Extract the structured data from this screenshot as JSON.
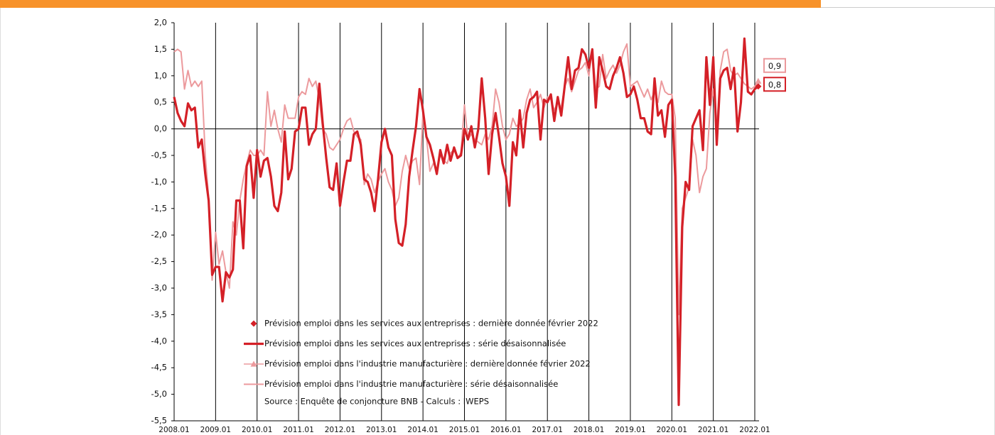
{
  "chart_data": {
    "type": "line",
    "categories": [
      "2008.01",
      null,
      null,
      null,
      null,
      null,
      null,
      null,
      null,
      null,
      null,
      null,
      "2009.01",
      null,
      null,
      null,
      null,
      null,
      null,
      null,
      null,
      null,
      null,
      null,
      "2010.01",
      null,
      null,
      null,
      null,
      null,
      null,
      null,
      null,
      null,
      null,
      null,
      "2011.01",
      null,
      null,
      null,
      null,
      null,
      null,
      null,
      null,
      null,
      null,
      null,
      "2012.01",
      null,
      null,
      null,
      null,
      null,
      null,
      null,
      null,
      null,
      null,
      null,
      "2013.01",
      null,
      null,
      null,
      null,
      null,
      null,
      null,
      null,
      null,
      null,
      null,
      "2014.01",
      null,
      null,
      null,
      null,
      null,
      null,
      null,
      null,
      null,
      null,
      null,
      "2015.01",
      null,
      null,
      null,
      null,
      null,
      null,
      null,
      null,
      null,
      null,
      null,
      "2016.01",
      null,
      null,
      null,
      null,
      null,
      null,
      null,
      null,
      null,
      null,
      null,
      "2017.01",
      null,
      null,
      null,
      null,
      null,
      null,
      null,
      null,
      null,
      null,
      null,
      "2018.01",
      null,
      null,
      null,
      null,
      null,
      null,
      null,
      null,
      null,
      null,
      null,
      "2019.01",
      null,
      null,
      null,
      null,
      null,
      null,
      null,
      null,
      null,
      null,
      null,
      "2020.01",
      null,
      null,
      null,
      null,
      null,
      null,
      null,
      null,
      null,
      null,
      null,
      "2021.01",
      null,
      null,
      null,
      null,
      null,
      null,
      null,
      null,
      null,
      null,
      null,
      "2022.01",
      null
    ],
    "ylim": [
      -5.5,
      2.0
    ],
    "yticks": [
      {
        "value": -5.5,
        "label": "-5,5"
      },
      {
        "value": -5.0,
        "label": "-5,0"
      },
      {
        "value": -4.5,
        "label": "-4,5"
      },
      {
        "value": -4.0,
        "label": "-4,0"
      },
      {
        "value": -3.5,
        "label": "-3,5"
      },
      {
        "value": -3.0,
        "label": "-3,0"
      },
      {
        "value": -2.5,
        "label": "-2,5"
      },
      {
        "value": -2.0,
        "label": "-2,0"
      },
      {
        "value": -1.5,
        "label": "-1,5"
      },
      {
        "value": -1.0,
        "label": "-1,0"
      },
      {
        "value": -0.5,
        "label": "-0,5"
      },
      {
        "value": 0.0,
        "label": "0,0"
      },
      {
        "value": 0.5,
        "label": "0,5"
      },
      {
        "value": 1.0,
        "label": "1,0"
      },
      {
        "value": 1.5,
        "label": "1,5"
      },
      {
        "value": 2.0,
        "label": "2,0"
      }
    ],
    "series": [
      {
        "name": "Prévision emploi dans les services aux entreprises : série désaisonnalisée",
        "color": "#d42027",
        "values": [
          0.6,
          0.3,
          0.15,
          0.05,
          0.48,
          0.35,
          0.4,
          -0.35,
          -0.2,
          -0.85,
          -1.35,
          -2.75,
          -2.6,
          -2.6,
          -3.25,
          -2.7,
          -2.8,
          -2.65,
          -1.35,
          -1.35,
          -2.25,
          -0.7,
          -0.5,
          -1.3,
          -0.4,
          -0.9,
          -0.6,
          -0.55,
          -0.9,
          -1.45,
          -1.55,
          -1.2,
          -0.05,
          -0.95,
          -0.75,
          -0.05,
          0.0,
          0.4,
          0.4,
          -0.3,
          -0.1,
          0.0,
          0.85,
          0.1,
          -0.55,
          -1.1,
          -1.15,
          -0.65,
          -1.45,
          -1.0,
          -0.6,
          -0.6,
          -0.1,
          -0.05,
          -0.3,
          -0.95,
          -1.0,
          -1.2,
          -1.55,
          -0.95,
          -0.25,
          0.0,
          -0.35,
          -0.5,
          -1.7,
          -2.15,
          -2.2,
          -1.8,
          -0.9,
          -0.4,
          0.05,
          0.75,
          0.35,
          -0.15,
          -0.3,
          -0.55,
          -0.85,
          -0.4,
          -0.65,
          -0.3,
          -0.6,
          -0.35,
          -0.55,
          -0.5,
          0.0,
          -0.2,
          0.05,
          -0.35,
          0.0,
          0.95,
          0.2,
          -0.85,
          -0.1,
          0.3,
          -0.15,
          -0.65,
          -0.9,
          -1.45,
          -0.25,
          -0.5,
          0.35,
          -0.35,
          0.3,
          0.55,
          0.6,
          0.7,
          -0.2,
          0.55,
          0.5,
          0.65,
          0.15,
          0.6,
          0.25,
          0.8,
          1.35,
          0.75,
          1.1,
          1.15,
          1.5,
          1.4,
          1.15,
          1.5,
          0.4,
          1.35,
          1.1,
          0.8,
          0.75,
          1.0,
          1.15,
          1.35,
          1.05,
          0.6,
          0.65,
          0.8,
          0.55,
          0.2,
          0.2,
          -0.05,
          -0.1,
          0.95,
          0.25,
          0.35,
          -0.15,
          0.45,
          0.55,
          -0.9,
          -5.2,
          -1.85,
          -1.0,
          -1.15,
          0.05,
          0.2,
          0.35,
          -0.4,
          1.35,
          0.45,
          1.35,
          -0.3,
          0.95,
          1.1,
          1.15,
          0.75,
          1.15,
          -0.05,
          0.5,
          1.7,
          0.7,
          0.65,
          0.75,
          0.8
        ]
      },
      {
        "name": "Prévision emploi dans l'industrie manufacturière : série désaisonnalisée",
        "color": "#ec9a9d",
        "values": [
          1.45,
          1.5,
          1.45,
          0.75,
          1.1,
          0.8,
          0.9,
          0.8,
          0.9,
          -0.5,
          -1.3,
          -2.85,
          -1.95,
          -2.55,
          -2.3,
          -2.7,
          -3.0,
          -1.75,
          -2.0,
          -1.35,
          -0.95,
          -0.65,
          -0.4,
          -0.5,
          -0.5,
          -0.4,
          -0.5,
          0.7,
          0.05,
          0.35,
          0.0,
          -0.25,
          0.45,
          0.2,
          0.2,
          0.2,
          0.6,
          0.7,
          0.65,
          0.95,
          0.8,
          0.9,
          0.55,
          0.0,
          -0.1,
          -0.35,
          -0.4,
          -0.3,
          -0.2,
          0.0,
          0.15,
          0.2,
          -0.05,
          -0.15,
          -0.2,
          -1.05,
          -0.85,
          -0.95,
          -1.2,
          -1.0,
          -0.85,
          -0.75,
          -1.0,
          -1.15,
          -1.45,
          -1.3,
          -0.8,
          -0.5,
          -0.75,
          -0.6,
          -0.55,
          -1.05,
          0.3,
          -0.15,
          -0.8,
          -0.65,
          -0.75,
          -0.5,
          -0.6,
          -0.65,
          -0.45,
          -0.4,
          -0.55,
          -0.45,
          0.45,
          -0.2,
          -0.1,
          -0.2,
          -0.25,
          -0.3,
          -0.1,
          -0.2,
          0.05,
          0.75,
          0.5,
          0.05,
          -0.2,
          -0.1,
          0.2,
          0.05,
          0.1,
          0.2,
          0.55,
          0.75,
          0.4,
          0.5,
          0.65,
          0.4,
          0.6,
          0.55,
          0.35,
          0.5,
          0.4,
          0.8,
          0.95,
          0.7,
          0.9,
          1.1,
          1.15,
          1.25,
          1.0,
          1.5,
          0.75,
          0.8,
          1.4,
          0.95,
          1.1,
          1.2,
          1.05,
          1.2,
          1.45,
          1.6,
          0.8,
          0.85,
          0.9,
          0.75,
          0.6,
          0.75,
          0.55,
          0.7,
          0.5,
          0.9,
          0.7,
          0.65,
          0.65,
          0.2,
          -3.5,
          -1.5,
          -1.3,
          -1.1,
          -0.2,
          -0.5,
          -1.2,
          -0.9,
          -0.75,
          0.3,
          0.75,
          0.0,
          1.1,
          1.45,
          1.5,
          1.1,
          1.0,
          1.05,
          0.95,
          0.85,
          0.8,
          0.75,
          0.8,
          0.9
        ]
      }
    ],
    "last_data": [
      {
        "name": "Prévision emploi dans les services aux entreprises : dernière donnée février 2022",
        "color": "#d42027",
        "marker": "diamond",
        "value": 0.8,
        "value_label": "0,8"
      },
      {
        "name": "Prévision emploi dans l'industrie manufacturière : dernière donnée février 2022",
        "color": "#ec9a9d",
        "marker": "triangle",
        "value": 0.9,
        "value_label": "0,9"
      }
    ],
    "source": "Source : Enquête de conjoncture BNB - Calculs : IWEPS"
  }
}
